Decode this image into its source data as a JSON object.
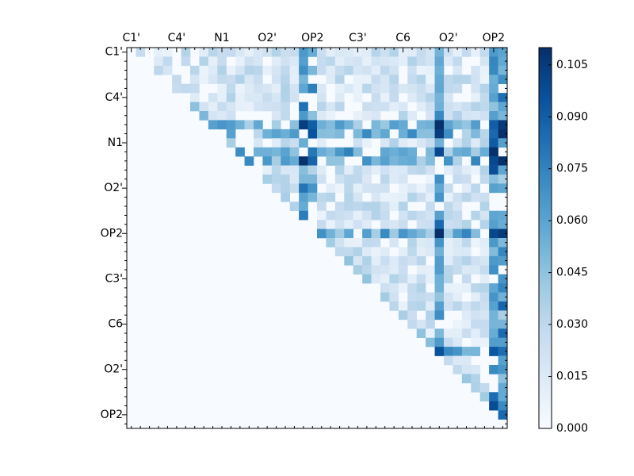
{
  "chart_data": {
    "type": "heatmap",
    "title": "",
    "xlabel": "",
    "ylabel": "",
    "size": 42,
    "x_tick_labels": [
      "C1'",
      "C4'",
      "N1",
      "O2'",
      "OP2",
      "C3'",
      "C6",
      "O2'",
      "OP2"
    ],
    "y_tick_labels": [
      "C1'",
      "C4'",
      "N1",
      "O2'",
      "OP2",
      "C3'",
      "C6",
      "O2'",
      "OP2"
    ],
    "label_step": 5,
    "x_label_position": "top",
    "upper_triangular": true,
    "colormap": "Blues",
    "vmin": 0.0,
    "vmax": 0.11,
    "colorbar_ticks": [
      "0.000",
      "0.015",
      "0.030",
      "0.045",
      "0.060",
      "0.075",
      "0.090",
      "0.105"
    ],
    "colorbar_tick_values": [
      0.0,
      0.015,
      0.03,
      0.045,
      0.06,
      0.075,
      0.09,
      0.105
    ],
    "hot_columns": [
      19,
      20,
      34,
      40,
      41
    ],
    "hot_rows": [
      8,
      9,
      11,
      12,
      20,
      33
    ],
    "peaks": [
      [
        11,
        40,
        0.11
      ],
      [
        12,
        40,
        0.1
      ],
      [
        13,
        40,
        0.098
      ],
      [
        11,
        20,
        0.08
      ],
      [
        10,
        40,
        0.092
      ],
      [
        20,
        40,
        0.1
      ],
      [
        12,
        20,
        0.088
      ]
    ],
    "grid": false
  }
}
